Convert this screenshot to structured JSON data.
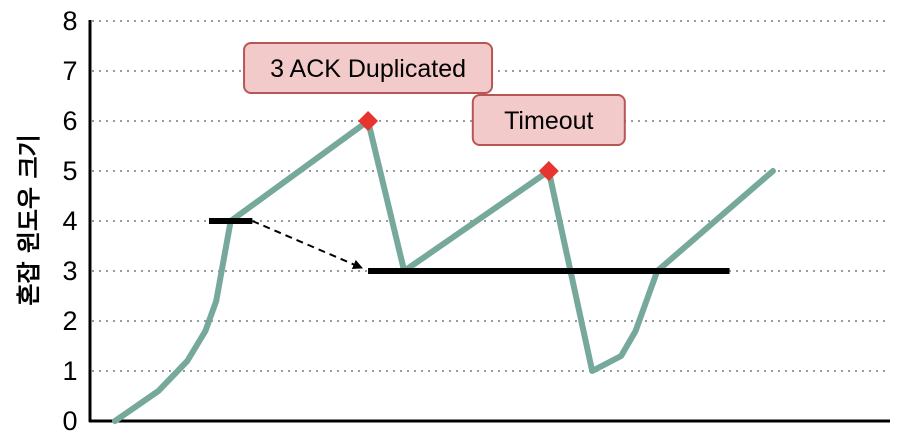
{
  "chart_data": {
    "type": "line",
    "ylabel": "혼잡 윈도우 크기",
    "xlabel": "",
    "ylim": [
      0,
      8
    ],
    "yticks": [
      "0",
      "1",
      "2",
      "3",
      "4",
      "5",
      "6",
      "7",
      "8"
    ],
    "grid": true,
    "grid_style": "dotted",
    "colors": {
      "line": "#76a89b",
      "marker": "#e8342f",
      "threshold": "#000000",
      "annotation_fill": "#f2caca",
      "annotation_border": "#b85555",
      "arrow": "#000000"
    },
    "x_domain": [
      0,
      100
    ],
    "series": [
      {
        "points": [
          [
            0,
            0
          ],
          [
            6,
            0.6
          ],
          [
            10,
            1.2
          ],
          [
            12.5,
            1.8
          ],
          [
            14,
            2.4
          ],
          [
            15,
            3.2
          ],
          [
            16,
            4.0
          ],
          [
            35,
            6
          ],
          [
            40,
            3
          ],
          [
            60,
            5
          ],
          [
            66,
            1
          ],
          [
            70,
            1.3
          ],
          [
            72,
            1.8
          ],
          [
            75,
            3
          ],
          [
            91,
            5
          ]
        ]
      }
    ],
    "markers": [
      {
        "x": 35,
        "y": 6
      },
      {
        "x": 60,
        "y": 5
      }
    ],
    "thresholds": [
      {
        "x0": 13,
        "x1": 19,
        "y": 4
      },
      {
        "x0": 35,
        "x1": 85,
        "y": 3
      }
    ],
    "arrow": {
      "x0": 19,
      "y0": 4,
      "x1": 35,
      "y1": 3
    },
    "annotations": [
      {
        "text": "3 ACK Duplicated",
        "target": 0
      },
      {
        "text": "Timeout",
        "target": 1
      }
    ]
  }
}
